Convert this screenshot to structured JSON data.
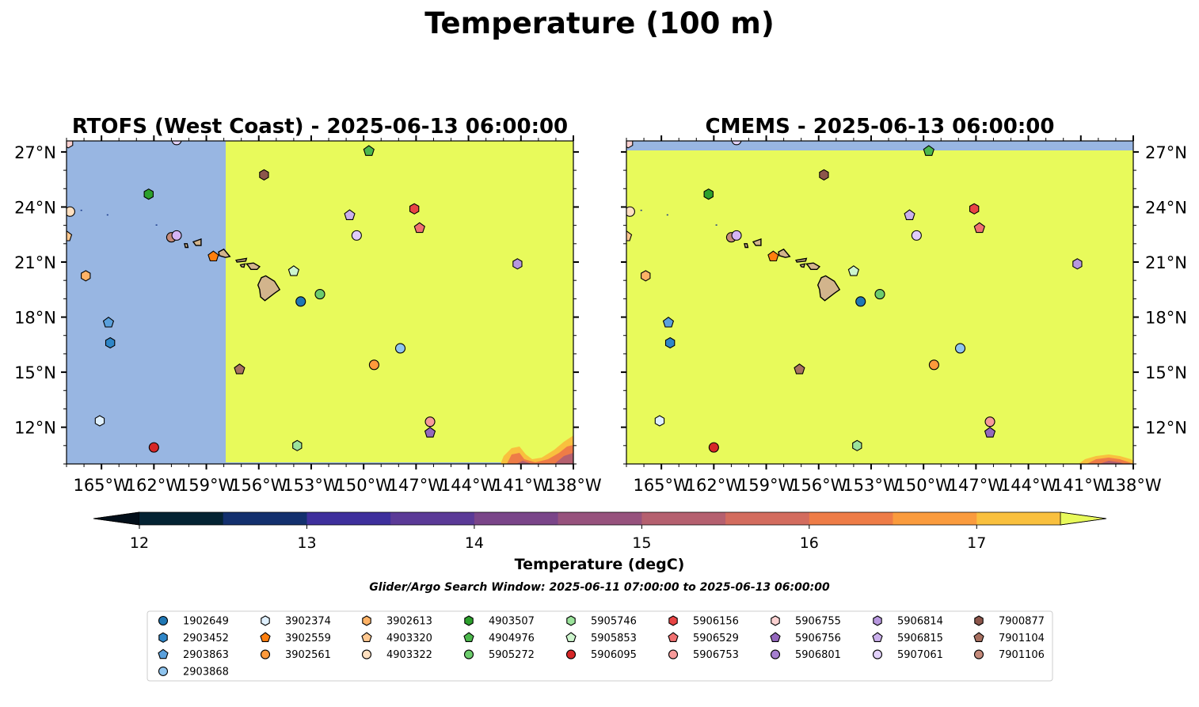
{
  "suptitle": "Temperature (100 m)",
  "panels": [
    {
      "id": "rtofs",
      "title": "RTOFS (West Coast) - 2025-06-13 06:00:00",
      "lat_labels_side": "left"
    },
    {
      "id": "cmems",
      "title": "CMEMS - 2025-06-13 06:00:00",
      "lat_labels_side": "right"
    }
  ],
  "map_extent": {
    "lon": [
      -167,
      -138
    ],
    "lat": [
      10,
      27.6
    ]
  },
  "x_ticks": [
    {
      "lon": -165,
      "label": "165°W"
    },
    {
      "lon": -162,
      "label": "162°W"
    },
    {
      "lon": -159,
      "label": "159°W"
    },
    {
      "lon": -156,
      "label": "156°W"
    },
    {
      "lon": -153,
      "label": "153°W"
    },
    {
      "lon": -150,
      "label": "150°W"
    },
    {
      "lon": -147,
      "label": "147°W"
    },
    {
      "lon": -144,
      "label": "144°W"
    },
    {
      "lon": -141,
      "label": "141°W"
    },
    {
      "lon": -138,
      "label": "138°W"
    }
  ],
  "y_ticks": [
    {
      "lat": 27,
      "label": "27°N"
    },
    {
      "lat": 24,
      "label": "24°N"
    },
    {
      "lat": 21,
      "label": "21°N"
    },
    {
      "lat": 18,
      "label": "18°N"
    },
    {
      "lat": 15,
      "label": "15°N"
    },
    {
      "lat": 12,
      "label": "12°N"
    }
  ],
  "colorbar": {
    "label": "Temperature (degC)",
    "min": 11.5,
    "max": 17.5,
    "ticks": [
      "12",
      "13",
      "14",
      "15",
      "16",
      "17"
    ],
    "tick_values": [
      12,
      13,
      14,
      15,
      16,
      17
    ],
    "bins": [
      {
        "from": 12.0,
        "to": 12.5,
        "color": "#042333"
      },
      {
        "from": 12.5,
        "to": 13.0,
        "color": "#13306e"
      },
      {
        "from": 13.0,
        "to": 13.5,
        "color": "#3e2f9c"
      },
      {
        "from": 13.5,
        "to": 14.0,
        "color": "#5b3a97"
      },
      {
        "from": 14.0,
        "to": 14.5,
        "color": "#7a4589"
      },
      {
        "from": 14.5,
        "to": 15.0,
        "color": "#97527d"
      },
      {
        "from": 15.0,
        "to": 15.5,
        "color": "#b5606f"
      },
      {
        "from": 15.5,
        "to": 16.0,
        "color": "#d36c5e"
      },
      {
        "from": 16.0,
        "to": 16.5,
        "color": "#ee7c47"
      },
      {
        "from": 16.5,
        "to": 17.0,
        "color": "#fa9b3d"
      },
      {
        "from": 17.0,
        "to": 17.5,
        "color": "#f9c03e"
      }
    ],
    "under_color": "#030f1a",
    "over_color": "#e8fa5b"
  },
  "colors": {
    "ocean_warm": "#e8fa5b",
    "missing": "#98b6e2",
    "land": "#d2b48c"
  },
  "search_window_note": "Glider/Argo Search Window: 2025-06-11 07:00:00 to 2025-06-13 06:00:00",
  "floats": [
    {
      "id": "1902649",
      "marker": "circle",
      "color": "#1f77b4",
      "lon": -153.6,
      "lat": 18.85
    },
    {
      "id": "2903452",
      "marker": "hexagon",
      "color": "#2e86c8",
      "lon": -164.5,
      "lat": 16.6
    },
    {
      "id": "2903863",
      "marker": "pentagon",
      "color": "#5aa0dc",
      "lon": -164.6,
      "lat": 17.7
    },
    {
      "id": "2903868",
      "marker": "circle",
      "color": "#8fc4ee",
      "lon": -147.9,
      "lat": 16.3
    },
    {
      "id": "3902374",
      "marker": "hexagon",
      "color": "#dff0ff",
      "lon": -165.1,
      "lat": 12.35
    },
    {
      "id": "3902559",
      "marker": "pentagon",
      "color": "#ff7f0e",
      "lon": -158.6,
      "lat": 21.3
    },
    {
      "id": "3902561",
      "marker": "circle",
      "color": "#ff9a3c",
      "lon": -149.4,
      "lat": 15.4
    },
    {
      "id": "3902613",
      "marker": "hexagon",
      "color": "#ffb266",
      "lon": -165.9,
      "lat": 20.25
    },
    {
      "id": "4903320",
      "marker": "pentagon",
      "color": "#ffc890",
      "lon": -167.0,
      "lat": 22.4
    },
    {
      "id": "4903322",
      "marker": "circle",
      "color": "#ffe0c0",
      "lon": -166.8,
      "lat": 23.75
    },
    {
      "id": "4903507",
      "marker": "hexagon",
      "color": "#2ca02c",
      "lon": -162.3,
      "lat": 24.7
    },
    {
      "id": "4904976",
      "marker": "pentagon",
      "color": "#4cb84c",
      "lon": -149.7,
      "lat": 27.05
    },
    {
      "id": "5905272",
      "marker": "circle",
      "color": "#6ccc6c",
      "lon": -152.5,
      "lat": 19.25
    },
    {
      "id": "5905746",
      "marker": "hexagon",
      "color": "#9be39b",
      "lon": -153.8,
      "lat": 11.0
    },
    {
      "id": "5905853",
      "marker": "pentagon",
      "color": "#cdf5cd",
      "lon": -154.0,
      "lat": 20.5
    },
    {
      "id": "5906095",
      "marker": "circle",
      "color": "#d62728",
      "lon": -162.0,
      "lat": 10.9
    },
    {
      "id": "5906156",
      "marker": "hexagon",
      "color": "#e84444",
      "lon": -147.1,
      "lat": 23.9
    },
    {
      "id": "5906529",
      "marker": "pentagon",
      "color": "#f07070",
      "lon": -146.8,
      "lat": 22.85
    },
    {
      "id": "5906753",
      "marker": "circle",
      "color": "#f79a9a",
      "lon": -146.2,
      "lat": 12.3
    },
    {
      "id": "5906755",
      "marker": "hexagon",
      "color": "#fbd1d1",
      "lon": -166.9,
      "lat": 27.5
    },
    {
      "id": "5906756",
      "marker": "pentagon",
      "color": "#9467bd",
      "lon": -146.2,
      "lat": 11.7
    },
    {
      "id": "5906801",
      "marker": "circle",
      "color": "#a57fcf",
      "lon": -163.0,
      "lat": 27.9
    },
    {
      "id": "5906814",
      "marker": "hexagon",
      "color": "#b797de",
      "lon": -141.2,
      "lat": 20.9
    },
    {
      "id": "5906815",
      "marker": "pentagon",
      "color": "#cbb0ec",
      "lon": -150.8,
      "lat": 23.55
    },
    {
      "id": "5907061",
      "marker": "circle",
      "color": "#e2d1fa",
      "lon": -160.7,
      "lat": 27.65
    },
    {
      "id": "7900877",
      "marker": "hexagon",
      "color": "#8c564b",
      "lon": -155.7,
      "lat": 25.75
    },
    {
      "id": "7901104",
      "marker": "pentagon",
      "color": "#a87060",
      "lon": -157.1,
      "lat": 15.15
    },
    {
      "id": "7901106",
      "marker": "circle",
      "color": "#c48a7a",
      "lon": -161.0,
      "lat": 22.35
    }
  ],
  "extra_markers_left": [
    {
      "marker": "circle",
      "color": "#d5b5f5",
      "lon": -160.7,
      "lat": 22.45
    },
    {
      "marker": "circle",
      "color": "#e0ccfa",
      "lon": -150.4,
      "lat": 22.45
    }
  ],
  "legend": {
    "columns": [
      [
        "1902649",
        "2903452",
        "2903863",
        "2903868"
      ],
      [
        "3902374",
        "3902559",
        "3902561"
      ],
      [
        "3902613",
        "4903320",
        "4903322"
      ],
      [
        "4903507",
        "4904976",
        "5905272"
      ],
      [
        "5905746",
        "5905853",
        "5906095"
      ],
      [
        "5906156",
        "5906529",
        "5906753"
      ],
      [
        "5906755",
        "5906756",
        "5906801"
      ],
      [
        "5906814",
        "5906815",
        "5907061"
      ],
      [
        "7900877",
        "7901104",
        "7901106"
      ]
    ]
  }
}
